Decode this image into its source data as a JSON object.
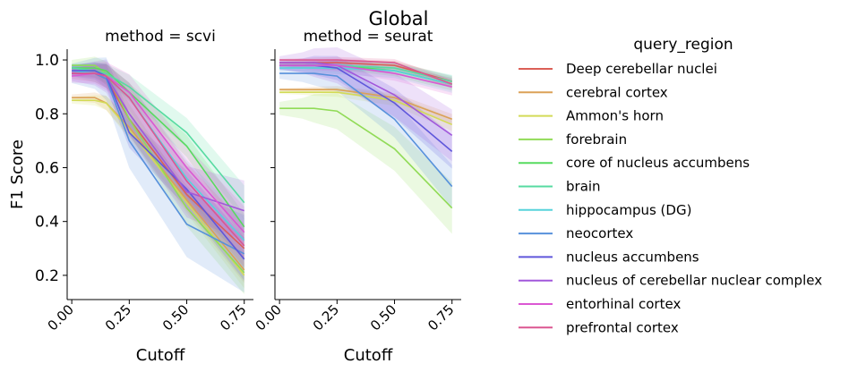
{
  "chart_data": {
    "type": "line",
    "title": "Global",
    "ylabel": "F1 Score",
    "x": [
      0.0,
      0.1,
      0.15,
      0.25,
      0.5,
      0.75
    ],
    "xlim": [
      -0.02,
      0.79
    ],
    "ylim": [
      0.11,
      1.04
    ],
    "xticks": [
      "0.00",
      "0.25",
      "0.50",
      "0.75"
    ],
    "yticks": [
      "0.2",
      "0.4",
      "0.6",
      "0.8",
      "1.0"
    ],
    "grid": false,
    "legend": {
      "title": "query_region",
      "placement": "right",
      "entries": [
        "Deep cerebellar nuclei",
        "cerebral cortex",
        "Ammon's horn",
        "forebrain",
        "core of nucleus accumbens",
        "brain",
        "hippocampus (DG)",
        "neocortex",
        "nucleus accumbens",
        "nucleus of cerebellar nuclear complex",
        "entorhinal cortex",
        "prefrontal cortex"
      ]
    },
    "colors": [
      "#db5f57",
      "#dba157",
      "#d3db57",
      "#91db57",
      "#57db5f",
      "#57dba1",
      "#57d3db",
      "#5791db",
      "#5f57db",
      "#a157db",
      "#db57d3",
      "#db5791"
    ],
    "panels": [
      {
        "title": "method = scvi",
        "xlabel": "Cutoff",
        "series": [
          {
            "name": "Deep cerebellar nuclei",
            "values": [
              0.95,
              0.95,
              0.93,
              0.78,
              0.5,
              0.3
            ],
            "band": 0.025
          },
          {
            "name": "cerebral cortex",
            "values": [
              0.86,
              0.86,
              0.84,
              0.75,
              0.48,
              0.22
            ],
            "band": 0.03
          },
          {
            "name": "Ammon's horn",
            "values": [
              0.85,
              0.85,
              0.84,
              0.74,
              0.47,
              0.2
            ],
            "band": 0.03
          },
          {
            "name": "forebrain",
            "values": [
              0.98,
              0.98,
              0.95,
              0.78,
              0.45,
              0.21
            ],
            "band": 0.05
          },
          {
            "name": "core of nucleus accumbens",
            "values": [
              0.97,
              0.97,
              0.96,
              0.88,
              0.68,
              0.38
            ],
            "band": 0.03
          },
          {
            "name": "brain",
            "values": [
              0.97,
              0.96,
              0.95,
              0.9,
              0.73,
              0.47
            ],
            "band": 0.04
          },
          {
            "name": "hippocampus (DG)",
            "values": [
              0.96,
              0.95,
              0.94,
              0.86,
              0.56,
              0.33
            ],
            "band": 0.05
          },
          {
            "name": "neocortex",
            "values": [
              0.95,
              0.95,
              0.93,
              0.7,
              0.39,
              0.28
            ],
            "band": 0.09
          },
          {
            "name": "nucleus accumbens",
            "values": [
              0.96,
              0.96,
              0.94,
              0.73,
              0.52,
              0.26
            ],
            "band": 0.05
          },
          {
            "name": "nucleus of cerebellar nuclear complex",
            "values": [
              0.95,
              0.95,
              0.94,
              0.8,
              0.51,
              0.44
            ],
            "band": 0.07
          },
          {
            "name": "entorhinal cortex",
            "values": [
              0.94,
              0.95,
              0.94,
              0.88,
              0.6,
              0.36
            ],
            "band": 0.06
          },
          {
            "name": "prefrontal cortex",
            "values": [
              0.95,
              0.95,
              0.94,
              0.86,
              0.55,
              0.31
            ],
            "band": 0.05
          }
        ]
      },
      {
        "title": "method = seurat",
        "xlabel": "Cutoff",
        "series": [
          {
            "name": "Deep cerebellar nuclei",
            "values": [
              0.99,
              0.99,
              0.99,
              0.99,
              0.98,
              0.92
            ],
            "band": 0.012
          },
          {
            "name": "cerebral cortex",
            "values": [
              0.89,
              0.89,
              0.89,
              0.89,
              0.86,
              0.78
            ],
            "band": 0.012
          },
          {
            "name": "Ammon's horn",
            "values": [
              0.88,
              0.88,
              0.88,
              0.88,
              0.85,
              0.76
            ],
            "band": 0.015
          },
          {
            "name": "forebrain",
            "values": [
              0.82,
              0.82,
              0.82,
              0.81,
              0.67,
              0.45
            ],
            "band": 0.06
          },
          {
            "name": "core of nucleus accumbens",
            "values": [
              0.98,
              0.98,
              0.98,
              0.98,
              0.96,
              0.91
            ],
            "band": 0.015
          },
          {
            "name": "brain",
            "values": [
              0.98,
              0.98,
              0.98,
              0.98,
              0.97,
              0.92
            ],
            "band": 0.015
          },
          {
            "name": "hippocampus (DG)",
            "values": [
              0.97,
              0.97,
              0.97,
              0.97,
              0.96,
              0.91
            ],
            "band": 0.02
          },
          {
            "name": "neocortex",
            "values": [
              0.95,
              0.95,
              0.95,
              0.94,
              0.78,
              0.53
            ],
            "band": 0.05
          },
          {
            "name": "nucleus accumbens",
            "values": [
              0.98,
              0.98,
              0.98,
              0.97,
              0.84,
              0.66
            ],
            "band": 0.04
          },
          {
            "name": "nucleus of cerebellar nuclear complex",
            "values": [
              0.99,
              0.99,
              0.99,
              0.98,
              0.87,
              0.72
            ],
            "band": 0.06
          },
          {
            "name": "entorhinal cortex",
            "values": [
              0.98,
              0.98,
              0.98,
              0.98,
              0.95,
              0.9
            ],
            "band": 0.02
          },
          {
            "name": "prefrontal cortex",
            "values": [
              1.0,
              1.0,
              1.0,
              1.0,
              0.99,
              0.91
            ],
            "band": 0.01
          }
        ]
      }
    ]
  }
}
